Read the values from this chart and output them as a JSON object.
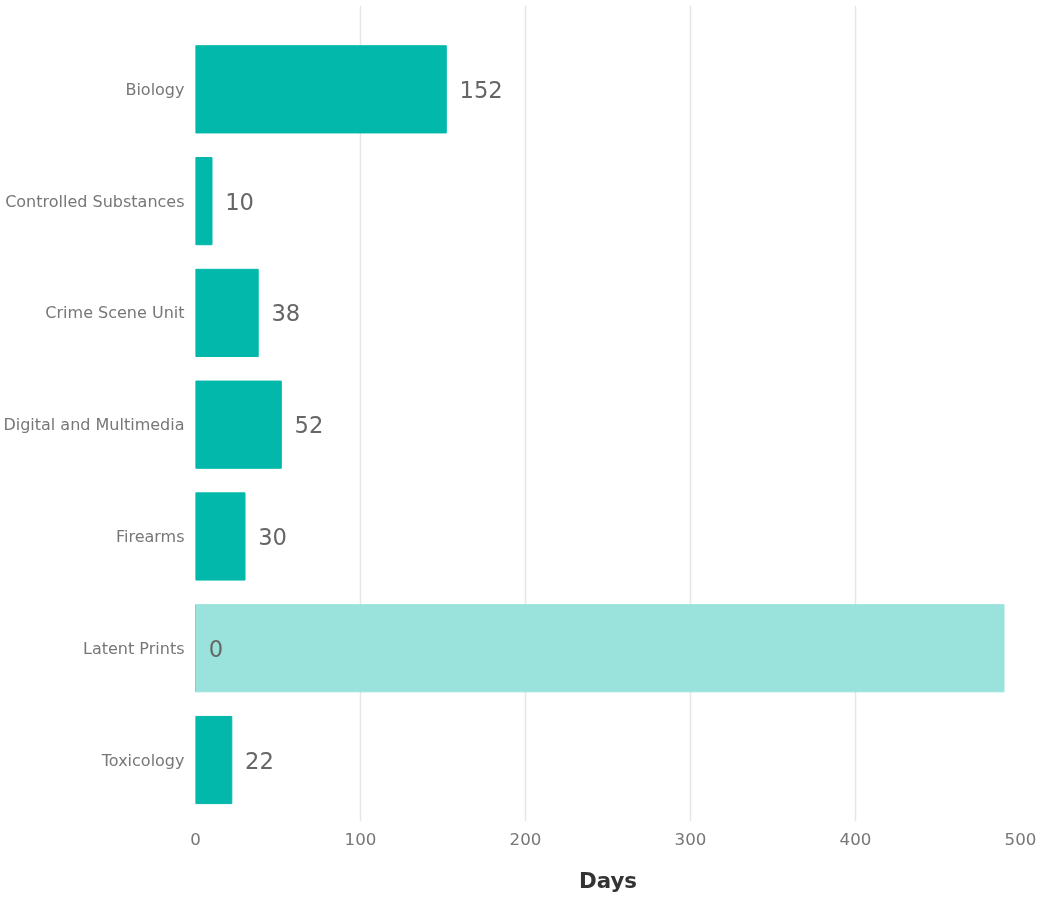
{
  "chart_data": {
    "type": "bar",
    "orientation": "horizontal",
    "xlabel": "Days",
    "categories": [
      "Biology",
      "Controlled Substances",
      "Crime Scene Unit",
      "Digital and Multimedia",
      "Firearms",
      "Latent Prints",
      "Toxicology"
    ],
    "series": [
      {
        "color": "#01b8aa",
        "values": [
          152,
          10,
          38,
          52,
          30,
          0,
          22
        ],
        "data_labels": true
      },
      {
        "color": "#99e3dc",
        "values": [
          null,
          null,
          null,
          null,
          null,
          490,
          null
        ]
      }
    ],
    "xlim": [
      0,
      500
    ],
    "xticks": [
      0,
      100,
      200,
      300,
      400,
      500
    ],
    "grid": "x"
  }
}
